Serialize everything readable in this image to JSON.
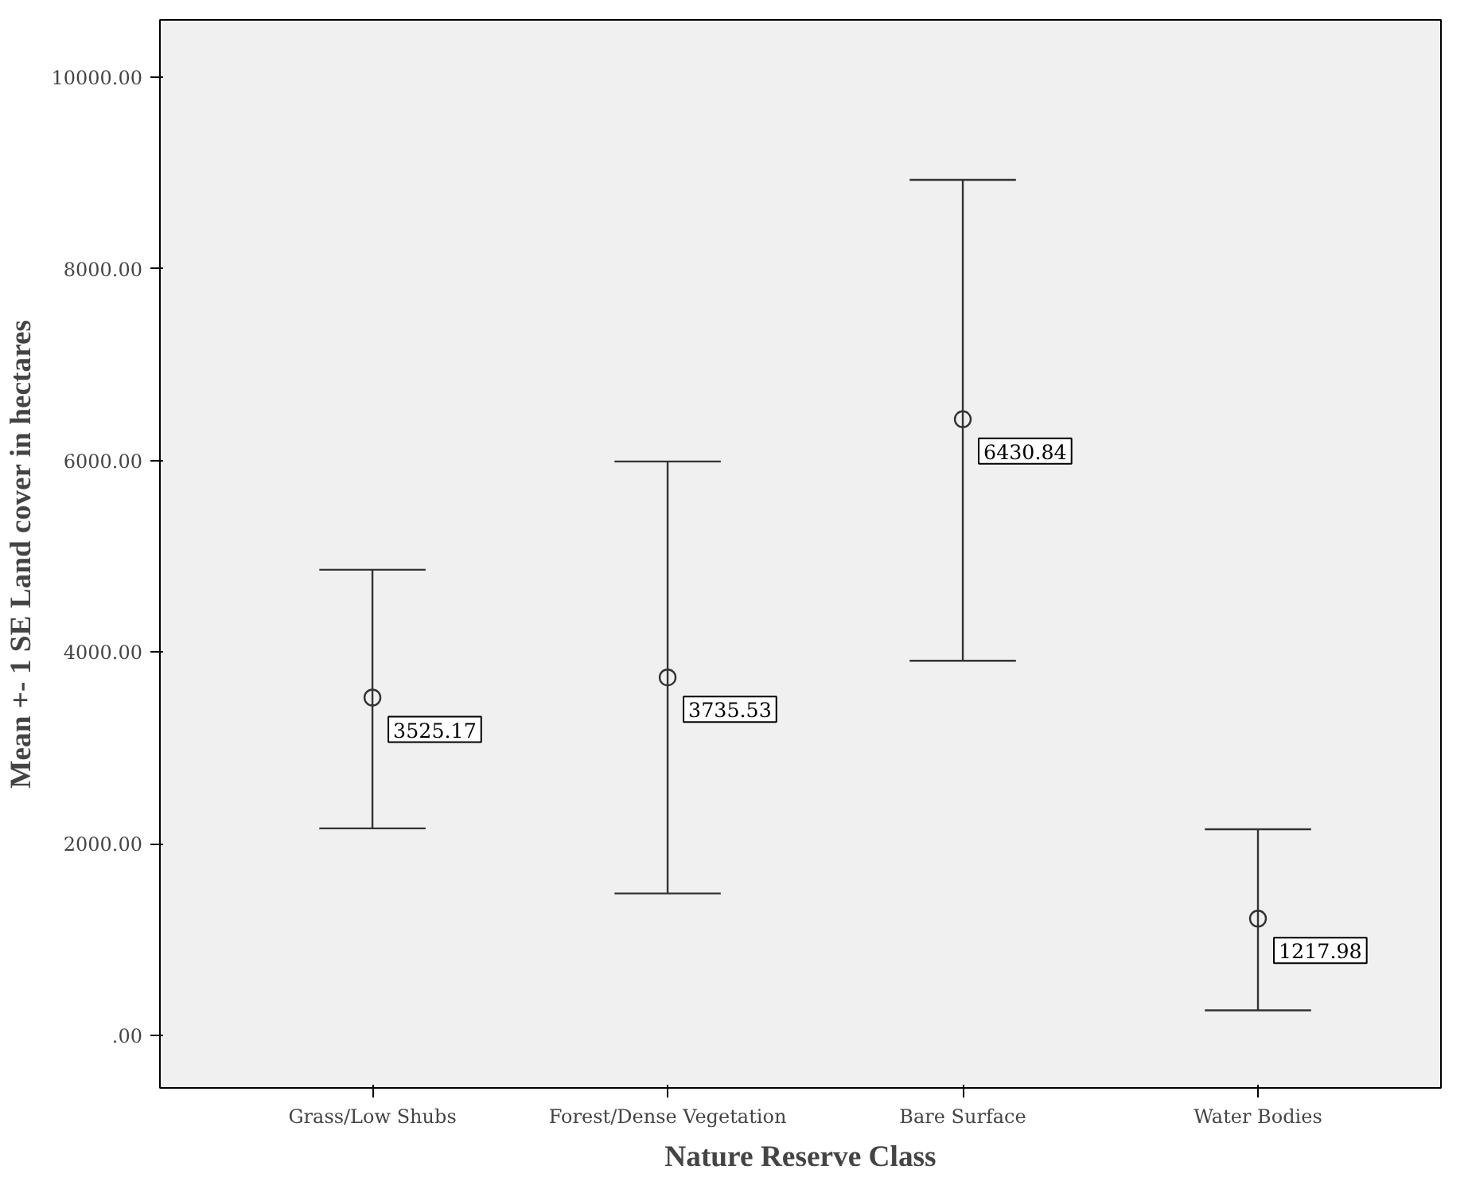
{
  "chart_data": {
    "type": "scatter",
    "xlabel": "Nature Reserve Class",
    "ylabel": "Mean +- 1 SE Land cover in hectares",
    "categories": [
      "Grass/Low Shubs",
      "Forest/Dense Vegetation",
      "Bare Surface",
      "Water Bodies"
    ],
    "series": [
      {
        "color": "#333333",
        "values": [
          3525.17,
          3735.53,
          6430.84,
          1217.98
        ],
        "errors": [
          [
            2160,
            4860
          ],
          [
            1480,
            5990
          ],
          [
            3910,
            8930
          ],
          [
            260,
            2150
          ]
        ],
        "value_labels": [
          "3525.17",
          "3735.53",
          "6430.84",
          "1217.98"
        ]
      }
    ],
    "marker": "circle",
    "grid": false,
    "ylim": [
      -550,
      10600
    ],
    "yticks": [
      {
        "value": 0,
        "label": ".00"
      },
      {
        "value": 2000,
        "label": "2000.00"
      },
      {
        "value": 4000,
        "label": "4000.00"
      },
      {
        "value": 6000,
        "label": "6000.00"
      },
      {
        "value": 8000,
        "label": "8000.00"
      },
      {
        "value": 10000,
        "label": "10000.00"
      }
    ]
  }
}
